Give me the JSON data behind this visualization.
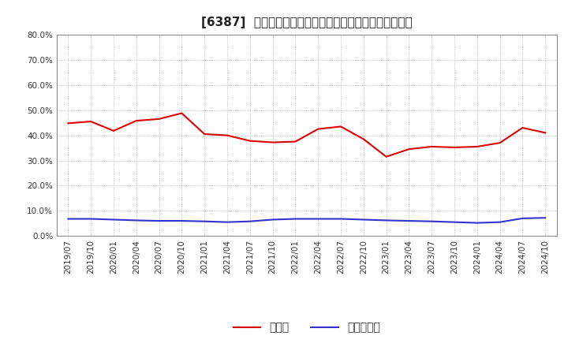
{
  "title": "[6387]  現領金、有利子負債の総資産に対する比率の推移",
  "x_labels": [
    "2019/07",
    "2019/10",
    "2020/01",
    "2020/04",
    "2020/07",
    "2020/10",
    "2021/01",
    "2021/04",
    "2021/07",
    "2021/10",
    "2022/01",
    "2022/04",
    "2022/07",
    "2022/10",
    "2023/01",
    "2023/04",
    "2023/07",
    "2023/10",
    "2024/01",
    "2024/04",
    "2024/07",
    "2024/10"
  ],
  "cash_values": [
    44.8,
    45.5,
    41.8,
    45.8,
    46.5,
    48.8,
    40.5,
    40.0,
    37.8,
    37.2,
    37.5,
    42.5,
    43.5,
    38.5,
    31.5,
    34.5,
    35.5,
    35.2,
    35.5,
    37.0,
    43.0,
    41.0
  ],
  "debt_values": [
    6.8,
    6.8,
    6.5,
    6.2,
    6.0,
    6.0,
    5.8,
    5.5,
    5.8,
    6.5,
    6.8,
    6.8,
    6.8,
    6.5,
    6.2,
    6.0,
    5.8,
    5.5,
    5.2,
    5.5,
    7.0,
    7.2
  ],
  "cash_color": "#dd0000",
  "debt_color": "#3333cc",
  "ylim": [
    0.0,
    80.0
  ],
  "yticks": [
    0.0,
    10.0,
    20.0,
    30.0,
    40.0,
    50.0,
    60.0,
    70.0,
    80.0
  ],
  "legend_cash": "現領金",
  "legend_debt": "有利子負債",
  "background_color": "#ffffff",
  "grid_color": "#aaaaaa",
  "title_fontsize": 11,
  "tick_fontsize": 7.5,
  "legend_fontsize": 10
}
